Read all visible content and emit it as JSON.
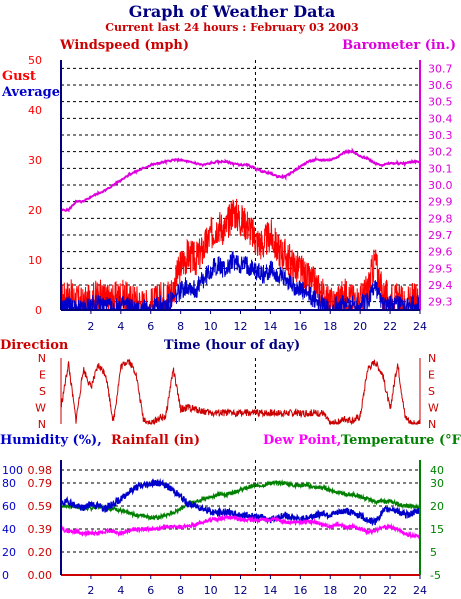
{
  "title": "Graph of Weather Data",
  "subtitle": "Current last 24 hours : February 03 2003",
  "colors": {
    "gust": "#ff0000",
    "average": "#0000cc",
    "barometer": "#dd00dd",
    "direction": "#cc0000",
    "humidity": "#0000cc",
    "dewpoint": "#ff00ff",
    "temperature": "#008000",
    "axis_blue": "#000080"
  },
  "chart_data": [
    {
      "type": "line",
      "labels": {
        "windspeed": "Windspeed (mph)",
        "barometer": "Barometer (in.)",
        "gust": "Gust",
        "average": "Average",
        "xlabel": "Time (hour of day)"
      },
      "ylim": [
        0,
        50
      ],
      "y_ticks": [
        "0",
        "10",
        "20",
        "30",
        "40",
        "50"
      ],
      "y2lim": [
        29.25,
        30.75
      ],
      "y2_ticks": [
        "29.3",
        "29.4",
        "29.5",
        "29.6",
        "29.7",
        "29.8",
        "29.9",
        "30.0",
        "30.1",
        "30.2",
        "30.3",
        "30.4",
        "30.5",
        "30.6",
        "30.7"
      ],
      "xlim": [
        0,
        24
      ],
      "x_ticks": [
        "2",
        "4",
        "6",
        "8",
        "10",
        "12",
        "14",
        "16",
        "18",
        "20",
        "22",
        "24"
      ],
      "grid": true,
      "marker_hour": 13,
      "series": [
        {
          "name": "Gust",
          "x": [
            0,
            0.5,
            1,
            1.5,
            2,
            2.5,
            3,
            3.5,
            4,
            4.5,
            5,
            5.5,
            6,
            6.5,
            7,
            7.5,
            8,
            8.5,
            9,
            9.5,
            10,
            10.5,
            11,
            11.5,
            12,
            12.5,
            13,
            13.5,
            14,
            14.5,
            15,
            15.5,
            16,
            16.5,
            17,
            17.5,
            18,
            18.5,
            19,
            19.5,
            20,
            20.5,
            21,
            21.5,
            22,
            22.5,
            23,
            23.5,
            24
          ],
          "values": [
            2,
            3,
            2,
            1,
            2,
            3,
            2,
            2,
            3,
            2,
            2,
            1,
            1,
            2,
            3,
            4,
            9,
            11,
            10,
            12,
            15,
            17,
            16,
            20,
            18,
            17,
            14,
            13,
            15,
            12,
            11,
            9,
            8,
            6,
            5,
            3,
            1,
            2,
            3,
            2,
            2,
            4,
            10,
            3,
            2,
            2,
            1,
            2,
            2
          ]
        },
        {
          "name": "Average",
          "x": [
            0,
            0.5,
            1,
            1.5,
            2,
            2.5,
            3,
            3.5,
            4,
            4.5,
            5,
            5.5,
            6,
            6.5,
            7,
            7.5,
            8,
            8.5,
            9,
            9.5,
            10,
            10.5,
            11,
            11.5,
            12,
            12.5,
            13,
            13.5,
            14,
            14.5,
            15,
            15.5,
            16,
            16.5,
            17,
            17.5,
            18,
            18.5,
            19,
            19.5,
            20,
            20.5,
            21,
            21.5,
            22,
            22.5,
            23,
            23.5,
            24
          ],
          "values": [
            0,
            1,
            0,
            0,
            1,
            1,
            1,
            0,
            1,
            1,
            0,
            0,
            0,
            1,
            1,
            2,
            4,
            5,
            4,
            6,
            8,
            9,
            8,
            10,
            9,
            9,
            8,
            7,
            8,
            7,
            6,
            5,
            4,
            3,
            2,
            1,
            0,
            1,
            1,
            1,
            1,
            2,
            5,
            1,
            1,
            1,
            0,
            1,
            1
          ]
        },
        {
          "name": "Barometer",
          "axis": "right",
          "x": [
            0,
            0.5,
            1,
            1.5,
            2,
            2.5,
            3,
            3.5,
            4,
            4.5,
            5,
            5.5,
            6,
            6.5,
            7,
            7.5,
            8,
            8.5,
            9,
            9.5,
            10,
            10.5,
            11,
            11.5,
            12,
            12.5,
            13,
            13.5,
            14,
            14.5,
            15,
            15.5,
            16,
            16.5,
            17,
            17.5,
            18,
            18.5,
            19,
            19.5,
            20,
            20.5,
            21,
            21.5,
            22,
            22.5,
            23,
            23.5,
            24
          ],
          "values": [
            29.85,
            29.85,
            29.9,
            29.9,
            29.93,
            29.95,
            29.97,
            30.0,
            30.03,
            30.06,
            30.08,
            30.1,
            30.12,
            30.13,
            30.14,
            30.15,
            30.15,
            30.14,
            30.13,
            30.12,
            30.13,
            30.14,
            30.14,
            30.13,
            30.12,
            30.12,
            30.1,
            30.08,
            30.07,
            30.05,
            30.05,
            30.08,
            30.11,
            30.14,
            30.15,
            30.15,
            30.15,
            30.17,
            30.2,
            30.2,
            30.17,
            30.16,
            30.13,
            30.12,
            30.13,
            30.13,
            30.13,
            30.14,
            30.14
          ]
        }
      ]
    },
    {
      "type": "line",
      "labels": {
        "direction": "Direction"
      },
      "y_ticks": [
        "N",
        "W",
        "S",
        "E",
        "N"
      ],
      "xlim": [
        0,
        24
      ],
      "marker_hour": 13,
      "series": [
        {
          "name": "Direction",
          "x": [
            0,
            0.5,
            1,
            1.5,
            2,
            2.5,
            3,
            3.5,
            4,
            4.5,
            5,
            5.5,
            6,
            6.5,
            7,
            7.5,
            8,
            8.5,
            9,
            9.5,
            10,
            10.5,
            11,
            11.5,
            12,
            12.5,
            13,
            13.5,
            14,
            14.5,
            15,
            15.5,
            16,
            16.5,
            17,
            17.5,
            18,
            18.5,
            19,
            19.5,
            20,
            20.5,
            21,
            21.5,
            22,
            22.5,
            23,
            23.5,
            24
          ],
          "values": [
            90,
            330,
            20,
            300,
            200,
            320,
            270,
            10,
            310,
            350,
            280,
            30,
            0,
            30,
            40,
            300,
            80,
            90,
            80,
            70,
            60,
            60,
            60,
            60,
            60,
            60,
            60,
            60,
            60,
            60,
            60,
            60,
            60,
            60,
            60,
            60,
            0,
            10,
            30,
            20,
            40,
            300,
            340,
            270,
            80,
            330,
            40,
            0,
            5
          ]
        }
      ]
    },
    {
      "type": "line",
      "labels": {
        "humidity": "Humidity (%),",
        "rainfall": "Rainfall (in)",
        "dewpoint": "Dew Point,",
        "temperature": "Temperature (°F)"
      },
      "humidity_ticks": [
        "0",
        "20",
        "40",
        "60",
        "80",
        "100"
      ],
      "rain_ticks": [
        "0.00",
        "0.20",
        "0.39",
        "0.59",
        "0.79",
        "0.98"
      ],
      "temp_ticks": [
        "-5",
        "5",
        "15",
        "20",
        "30",
        "40"
      ],
      "ylim_humidity": [
        0,
        100
      ],
      "ylim_temp": [
        -5,
        45
      ],
      "xlim": [
        0,
        24
      ],
      "x_ticks": [
        "2",
        "4",
        "6",
        "8",
        "10",
        "12",
        "14",
        "16",
        "18",
        "20",
        "22",
        "24"
      ],
      "marker_hour": 13,
      "rainfall_total": 0.0,
      "series": [
        {
          "name": "Humidity",
          "x": [
            0,
            0.5,
            1,
            1.5,
            2,
            2.5,
            3,
            3.5,
            4,
            4.5,
            5,
            5.5,
            6,
            6.5,
            7,
            7.5,
            8,
            8.5,
            9,
            9.5,
            10,
            10.5,
            11,
            11.5,
            12,
            12.5,
            13,
            13.5,
            14,
            14.5,
            15,
            15.5,
            16,
            16.5,
            17,
            17.5,
            18,
            18.5,
            19,
            19.5,
            20,
            20.5,
            21,
            21.5,
            22,
            22.5,
            23,
            23.5,
            24
          ],
          "values": [
            62,
            64,
            60,
            58,
            62,
            60,
            58,
            62,
            66,
            72,
            76,
            78,
            80,
            80,
            78,
            74,
            68,
            62,
            60,
            58,
            55,
            54,
            55,
            53,
            52,
            52,
            50,
            50,
            48,
            50,
            52,
            50,
            48,
            50,
            52,
            54,
            52,
            54,
            56,
            54,
            52,
            48,
            46,
            55,
            58,
            56,
            52,
            54,
            56
          ]
        },
        {
          "name": "Dew Point",
          "x": [
            0,
            0.5,
            1,
            1.5,
            2,
            2.5,
            3,
            3.5,
            4,
            4.5,
            5,
            5.5,
            6,
            6.5,
            7,
            7.5,
            8,
            8.5,
            9,
            9.5,
            10,
            10.5,
            11,
            11.5,
            12,
            12.5,
            13,
            13.5,
            14,
            14.5,
            15,
            15.5,
            16,
            16.5,
            17,
            17.5,
            18,
            18.5,
            19,
            19.5,
            20,
            20.5,
            21,
            21.5,
            22,
            22.5,
            23,
            23.5,
            24
          ],
          "values": [
            15,
            14,
            14,
            13,
            13,
            13,
            14,
            14,
            13,
            14,
            15,
            15,
            15,
            15,
            16,
            16,
            16,
            16,
            17,
            18,
            19,
            19,
            20,
            20,
            19,
            19,
            19,
            19,
            19,
            19,
            18,
            18,
            18,
            18,
            18,
            17,
            16,
            17,
            16,
            16,
            15,
            14,
            14,
            16,
            16,
            15,
            13,
            12,
            12
          ]
        },
        {
          "name": "Temperature",
          "x": [
            0,
            0.5,
            1,
            1.5,
            2,
            2.5,
            3,
            3.5,
            4,
            4.5,
            5,
            5.5,
            6,
            6.5,
            7,
            7.5,
            8,
            8.5,
            9,
            9.5,
            10,
            10.5,
            11,
            11.5,
            12,
            12.5,
            13,
            13.5,
            14,
            14.5,
            15,
            15.5,
            16,
            16.5,
            17,
            17.5,
            18,
            18.5,
            19,
            19.5,
            20,
            20.5,
            21,
            21.5,
            22,
            22.5,
            23,
            23.5,
            24
          ],
          "values": [
            25,
            25,
            25,
            24,
            24,
            25,
            24,
            24,
            23,
            22,
            21,
            21,
            20,
            20,
            21,
            22,
            24,
            26,
            27,
            28,
            29,
            30,
            30,
            31,
            32,
            33,
            34,
            34,
            35,
            35,
            35,
            34,
            34,
            34,
            33,
            33,
            32,
            31,
            30,
            30,
            29,
            28,
            27,
            27,
            27,
            26,
            25,
            25,
            24
          ]
        }
      ]
    }
  ]
}
